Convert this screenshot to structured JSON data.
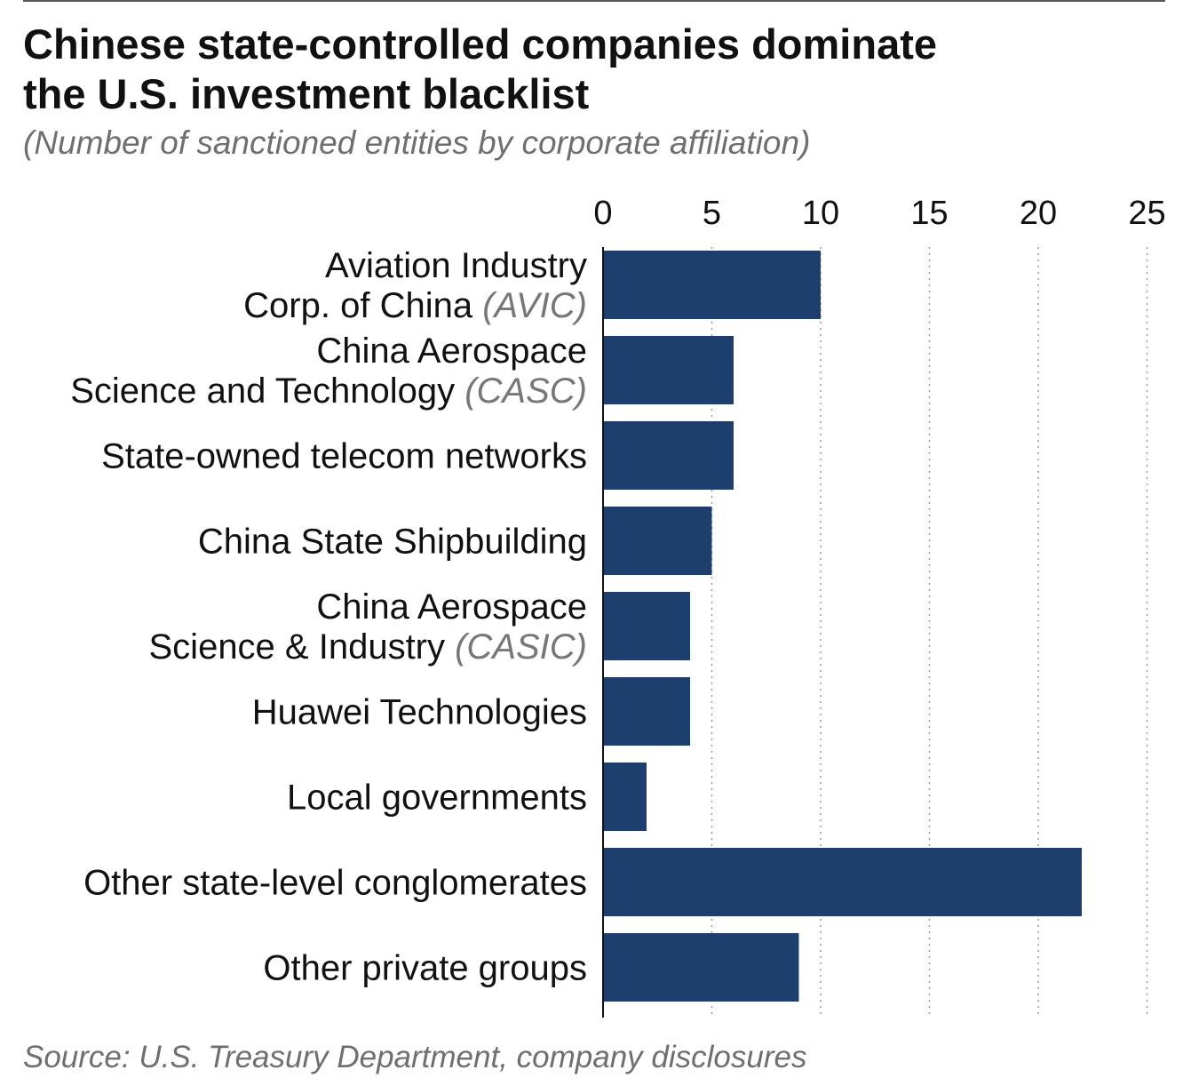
{
  "chart_data": {
    "type": "bar",
    "orientation": "horizontal",
    "title_lines": [
      "Chinese state-controlled companies dominate",
      "the U.S. investment blacklist"
    ],
    "subtitle": "(Number of sanctioned entities by corporate affiliation)",
    "source": "Source: U.S. Treasury Department, company disclosures",
    "xlim": [
      0,
      25
    ],
    "ticks": [
      0,
      5,
      10,
      15,
      20,
      25
    ],
    "grid": true,
    "bar_color": "#1c3f6e",
    "categories": [
      {
        "lines": [
          "Aviation Industry",
          "Corp. of China"
        ],
        "abbr": "(AVIC)"
      },
      {
        "lines": [
          "China Aerospace",
          "Science and Technology"
        ],
        "abbr": "(CASC)"
      },
      {
        "lines": [
          "State-owned telecom networks"
        ],
        "abbr": ""
      },
      {
        "lines": [
          "China State Shipbuilding"
        ],
        "abbr": ""
      },
      {
        "lines": [
          "China Aerospace",
          "Science & Industry"
        ],
        "abbr": "(CASIC)"
      },
      {
        "lines": [
          "Huawei Technologies"
        ],
        "abbr": ""
      },
      {
        "lines": [
          "Local governments"
        ],
        "abbr": ""
      },
      {
        "lines": [
          "Other state-level conglomerates"
        ],
        "abbr": ""
      },
      {
        "lines": [
          "Other private groups"
        ],
        "abbr": ""
      }
    ],
    "values": [
      10,
      6,
      6,
      5,
      4,
      4,
      2,
      22,
      9
    ]
  }
}
